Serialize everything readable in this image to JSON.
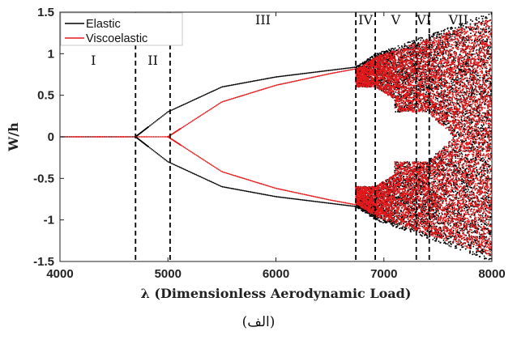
{
  "chart_data": {
    "type": "scatter",
    "xlabel": "λ (Dimensionless Aerodynamic Load)",
    "ylabel": "W/h",
    "xlim": [
      4000,
      8000
    ],
    "ylim": [
      -1.5,
      1.5
    ],
    "xticks": [
      "4000",
      "5000",
      "6000",
      "7000",
      "8000"
    ],
    "yticks": [
      "1.5",
      "1",
      "0.5",
      "0",
      "-0.5",
      "-1",
      "-1.5"
    ],
    "legend_position": "top-left",
    "series": [
      {
        "name": "Elastic",
        "color": "#000000",
        "flutter_onset": 4700,
        "limit_cycle_amplitude_at": [
          [
            4700,
            0
          ],
          [
            5000,
            0.3
          ],
          [
            5500,
            0.6
          ],
          [
            6000,
            0.72
          ],
          [
            6500,
            0.8
          ],
          [
            6750,
            0.84
          ]
        ]
      },
      {
        "name": "Viscoelastic",
        "color": "#e31a1c",
        "flutter_onset": 5000,
        "limit_cycle_amplitude_at": [
          [
            5000,
            0
          ],
          [
            5500,
            0.42
          ],
          [
            6000,
            0.62
          ],
          [
            6500,
            0.76
          ],
          [
            6750,
            0.82
          ]
        ]
      }
    ],
    "boundaries": [
      4700,
      5020,
      6740,
      6920,
      7300,
      7420
    ],
    "regions": [
      {
        "label": "I",
        "x": 4310
      },
      {
        "label": "II",
        "x": 4860
      },
      {
        "label": "III",
        "x": 5880
      },
      {
        "label": "IV",
        "x": 6830
      },
      {
        "label": "V",
        "x": 7110
      },
      {
        "label": "VI",
        "x": 7370
      },
      {
        "label": "VII",
        "x": 7690
      }
    ]
  },
  "caption": "(الف)"
}
